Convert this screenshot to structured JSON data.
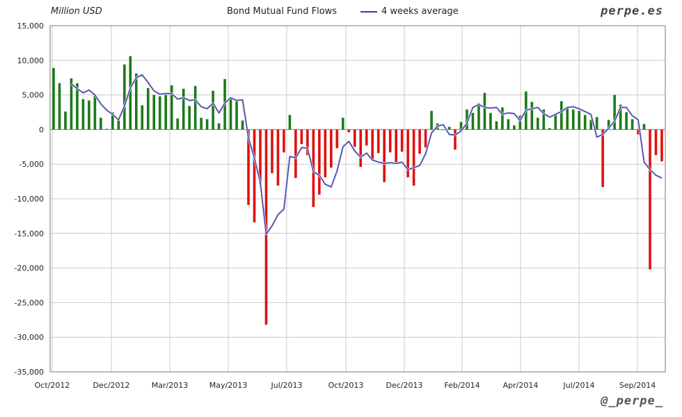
{
  "header": {
    "unit_label": "Million USD",
    "title": "Bond Mutual Fund Flows",
    "legend_label": "4 weeks average",
    "site": "perpe.es",
    "handle": "@_perpe_"
  },
  "colors": {
    "positive": "#1a7a1a",
    "negative": "#e01010",
    "average_line": "#3e3aa0",
    "grid": "#c8c8c8"
  },
  "chart_data": {
    "type": "bar",
    "title": "Bond Mutual Fund Flows",
    "ylabel": "Million USD",
    "ylim": [
      -35000,
      15000
    ],
    "yticks": [
      15000,
      10000,
      5000,
      0,
      -5000,
      -10000,
      -15000,
      -20000,
      -25000,
      -30000,
      -35000
    ],
    "ytick_labels": [
      "15,000",
      "10,000",
      "5,000",
      "0",
      "-5,000",
      "-10,000",
      "-15,000",
      "-20,000",
      "-25,000",
      "-30,000",
      "-35,000"
    ],
    "xtick_labels": [
      "Oct/2012",
      "Dec/2012",
      "Mar/2013",
      "May/2013",
      "Jul/2013",
      "Oct/2013",
      "Dec/2013",
      "Feb/2014",
      "Apr/2014",
      "Jul/2014",
      "Sep/2014"
    ],
    "grid": true,
    "legend": "top",
    "series": [
      {
        "kind": "bar",
        "values": [
          8900,
          6700,
          2600,
          7400,
          6700,
          4400,
          4200,
          5100,
          1700,
          100,
          2500,
          1500,
          9400,
          10600,
          8100,
          3500,
          6000,
          5000,
          4800,
          5000,
          6400,
          1600,
          5900,
          3400,
          6300,
          1700,
          1500,
          5600,
          900,
          7300,
          4500,
          4300,
          1300,
          -10900,
          -13400,
          -7900,
          -28200,
          -6300,
          -8100,
          -3300,
          2100,
          -7000,
          -2100,
          -3700,
          -11200,
          -9400,
          -6900,
          -5500,
          -2700,
          1700,
          -400,
          -2500,
          -5400,
          -2300,
          -4300,
          -3400,
          -7600,
          -3300,
          -4700,
          -3200,
          -6900,
          -8100,
          -3500,
          -2600,
          2700,
          900,
          0,
          400,
          -2900,
          1100,
          2900,
          2400,
          3800,
          5300,
          2400,
          1200,
          3200,
          1500,
          600,
          2000,
          5500,
          4000,
          1700,
          2900,
          200,
          2100,
          4100,
          3200,
          2900,
          2700,
          2100,
          1400,
          1800,
          -8300,
          1400,
          5000,
          3600,
          2500,
          1500,
          -700,
          800,
          -20200,
          -3700,
          -4600
        ]
      },
      {
        "kind": "line",
        "name": "4 weeks average",
        "values": [
          null,
          null,
          null,
          6600,
          5900,
          5300,
          5700,
          5000,
          3700,
          2800,
          2200,
          1400,
          3400,
          6000,
          7500,
          7900,
          6800,
          5600,
          5100,
          5200,
          5200,
          4400,
          4600,
          4200,
          4300,
          3300,
          3000,
          3800,
          2400,
          3800,
          4600,
          4200,
          4300,
          -1200,
          -4100,
          -7600,
          -15100,
          -13900,
          -12300,
          -11500,
          -3900,
          -4100,
          -2600,
          -2700,
          -6100,
          -6600,
          -7900,
          -8300,
          -6000,
          -2500,
          -1700,
          -3100,
          -4000,
          -3400,
          -4400,
          -4700,
          -4900,
          -4800,
          -4900,
          -4700,
          -5800,
          -5500,
          -5200,
          -3500,
          -500,
          500,
          700,
          -700,
          -800,
          -200,
          900,
          3200,
          3600,
          3200,
          3100,
          3200,
          2200,
          2400,
          2300,
          1300,
          2800,
          3000,
          3200,
          2300,
          1800,
          2200,
          2600,
          3200,
          3300,
          3000,
          2600,
          2200,
          -1100,
          -700,
          200,
          1200,
          3200,
          3200,
          2000,
          1400,
          -4700,
          -5800,
          -6600,
          -7000
        ]
      }
    ]
  }
}
